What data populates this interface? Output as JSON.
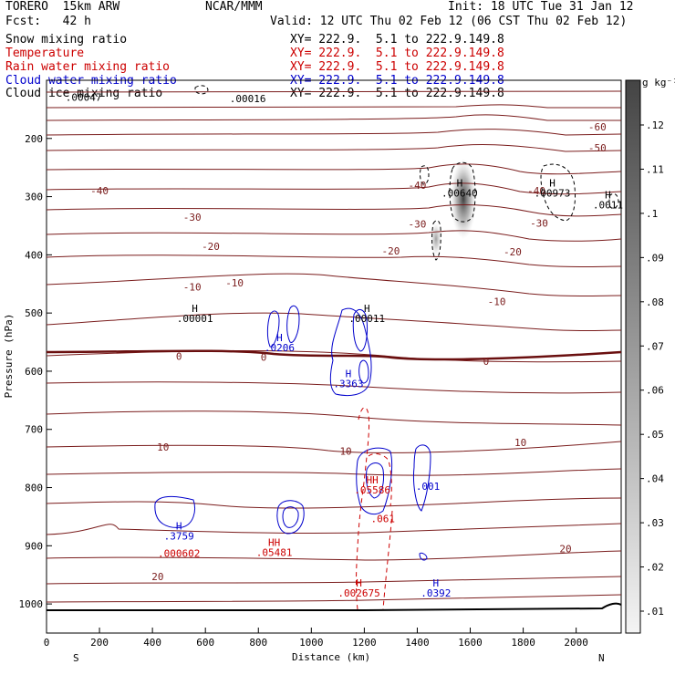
{
  "header": {
    "model": "TORERO  15km ARW",
    "org": "NCAR/MMM",
    "init": "Init: 18 UTC Tue 31 Jan 12",
    "fcst": "Fcst:   42 h",
    "valid": "Valid: 12 UTC Thu 02 Feb 12 (06 CST Thu 02 Feb 12)",
    "fields": [
      {
        "name": "Snow mixing ratio",
        "xy": "XY= 222.9.  5.1 to 222.9.149.8",
        "color": "#000000"
      },
      {
        "name": "Temperature",
        "xy": "XY= 222.9.  5.1 to 222.9.149.8",
        "color": "#cc0000"
      },
      {
        "name": "Rain water mixing ratio",
        "xy": "XY= 222.9.  5.1 to 222.9.149.8",
        "color": "#cc0000"
      },
      {
        "name": "Cloud water mixing ratio",
        "xy": "XY= 222.9.  5.1 to 222.9.149.8",
        "color": "#0000cc"
      },
      {
        "name": "Cloud ice mixing ratio",
        "xy": "XY= 222.9.  5.1 to 222.9.149.8",
        "color": "#000000"
      }
    ]
  },
  "chart_data": {
    "type": "cross-section",
    "xlabel": "Distance (km)",
    "ylabel": "Pressure (hPa)",
    "xlim": [
      0,
      2170
    ],
    "ylim": [
      1050,
      100
    ],
    "xticks": [
      0,
      200,
      400,
      600,
      800,
      1000,
      1200,
      1400,
      1600,
      1800,
      2000
    ],
    "yticks": [
      200,
      300,
      400,
      500,
      600,
      700,
      800,
      900,
      1000
    ],
    "x_end_labels": {
      "left": "S",
      "right": "N"
    },
    "colorbar": {
      "unit": "g kg⁻¹",
      "ticks": [
        ".01",
        ".02",
        ".03",
        ".04",
        ".05",
        ".06",
        ".07",
        ".08",
        ".09",
        ".1",
        ".11",
        ".12"
      ]
    },
    "temperature_labels": [
      {
        "text": "-60",
        "x": 2080,
        "p": 180
      },
      {
        "text": "-50",
        "x": 2080,
        "p": 216
      },
      {
        "text": "-40",
        "x": 200,
        "p": 290
      },
      {
        "text": "-40",
        "x": 1400,
        "p": 280
      },
      {
        "text": "-40",
        "x": 1850,
        "p": 290
      },
      {
        "text": "-30",
        "x": 550,
        "p": 335
      },
      {
        "text": "-30",
        "x": 1400,
        "p": 347
      },
      {
        "text": "-30",
        "x": 1860,
        "p": 345
      },
      {
        "text": "-20",
        "x": 620,
        "p": 385
      },
      {
        "text": "-20",
        "x": 1300,
        "p": 393
      },
      {
        "text": "-20",
        "x": 1760,
        "p": 395
      },
      {
        "text": "-10",
        "x": 550,
        "p": 455
      },
      {
        "text": "-10",
        "x": 710,
        "p": 448
      },
      {
        "text": "-10",
        "x": 1700,
        "p": 480
      },
      {
        "text": "0",
        "x": 500,
        "p": 574
      },
      {
        "text": "0",
        "x": 820,
        "p": 576
      },
      {
        "text": "0",
        "x": 1660,
        "p": 583
      },
      {
        "text": "10",
        "x": 440,
        "p": 730
      },
      {
        "text": "10",
        "x": 1130,
        "p": 737
      },
      {
        "text": "10",
        "x": 1790,
        "p": 722
      },
      {
        "text": "20",
        "x": 420,
        "p": 953
      },
      {
        "text": "20",
        "x": 1960,
        "p": 905
      }
    ],
    "extrema_labels": [
      {
        "mark": "H",
        "value": ".00001",
        "x": 560,
        "p": 498,
        "color": "#000000"
      },
      {
        "mark": "H",
        "value": ".00011",
        "x": 1210,
        "p": 498,
        "color": "#000000"
      },
      {
        "mark": "H",
        "value": ".00640",
        "x": 1560,
        "p": 283,
        "color": "#000000"
      },
      {
        "mark": "H",
        "value": ".00973",
        "x": 1910,
        "p": 283,
        "color": "#000000"
      },
      {
        "mark": "H",
        "value": ".0011",
        "x": 2120,
        "p": 303,
        "color": "#000000"
      },
      {
        "mark": "H",
        "value": ".0206",
        "x": 880,
        "p": 548,
        "color": "#0000cc"
      },
      {
        "mark": "H",
        "value": ".3363",
        "x": 1140,
        "p": 610,
        "color": "#0000cc"
      },
      {
        "mark": "HH",
        "value": ".05586",
        "x": 1230,
        "p": 793,
        "color": "#cc0000"
      },
      {
        "mark": "",
        "value": ".001",
        "x": 1440,
        "p": 787,
        "color": "#0000cc"
      },
      {
        "mark": "",
        "value": ".061",
        "x": 1270,
        "p": 842,
        "color": "#cc0000"
      },
      {
        "mark": "H",
        "value": ".3759",
        "x": 500,
        "p": 872,
        "color": "#0000cc"
      },
      {
        "mark": "",
        "value": ".000602",
        "x": 500,
        "p": 902,
        "color": "#cc0000"
      },
      {
        "mark": "HH",
        "value": ".05481",
        "x": 860,
        "p": 900,
        "color": "#cc0000"
      },
      {
        "mark": "H",
        "value": ".002675",
        "x": 1180,
        "p": 970,
        "color": "#cc0000"
      },
      {
        "mark": "H",
        "value": ".0392",
        "x": 1470,
        "p": 970,
        "color": "#0000cc"
      },
      {
        "mark": "",
        "value": ".00047",
        "x": 140,
        "p": 118,
        "color": "#000000"
      },
      {
        "mark": "",
        "value": ".00016",
        "x": 760,
        "p": 120,
        "color": "#000000"
      }
    ]
  }
}
